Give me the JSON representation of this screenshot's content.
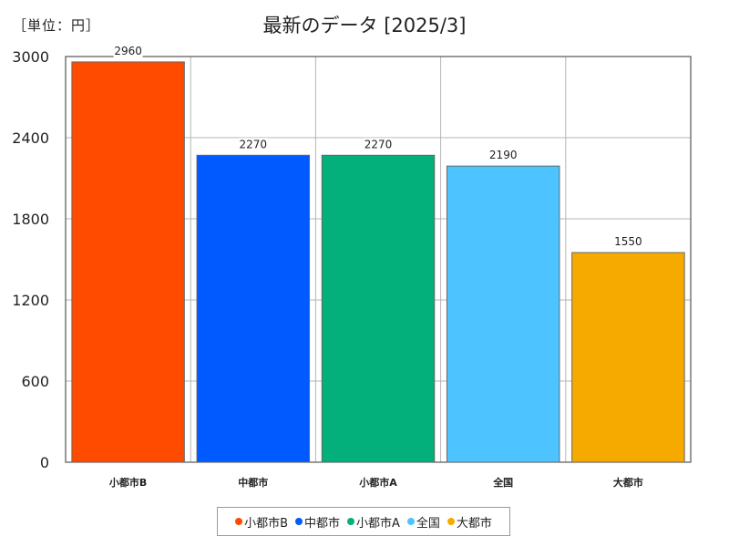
{
  "unit_label": "［単位：円］",
  "chart_data": {
    "type": "bar",
    "title": "最新のデータ [2025/3]",
    "categories": [
      "小都市B",
      "中都市",
      "小都市A",
      "全国",
      "大都市"
    ],
    "values": [
      2960,
      2270,
      2270,
      2190,
      1550
    ],
    "colors": [
      "#ff4b00",
      "#005aff",
      "#03af7a",
      "#4dc4ff",
      "#f6aa00"
    ],
    "ylim": [
      0,
      3000
    ],
    "yticks": [
      0,
      600,
      1200,
      1800,
      2400,
      3000
    ],
    "grid": true,
    "legend_position": "bottom",
    "xlabel": "",
    "ylabel": ""
  }
}
